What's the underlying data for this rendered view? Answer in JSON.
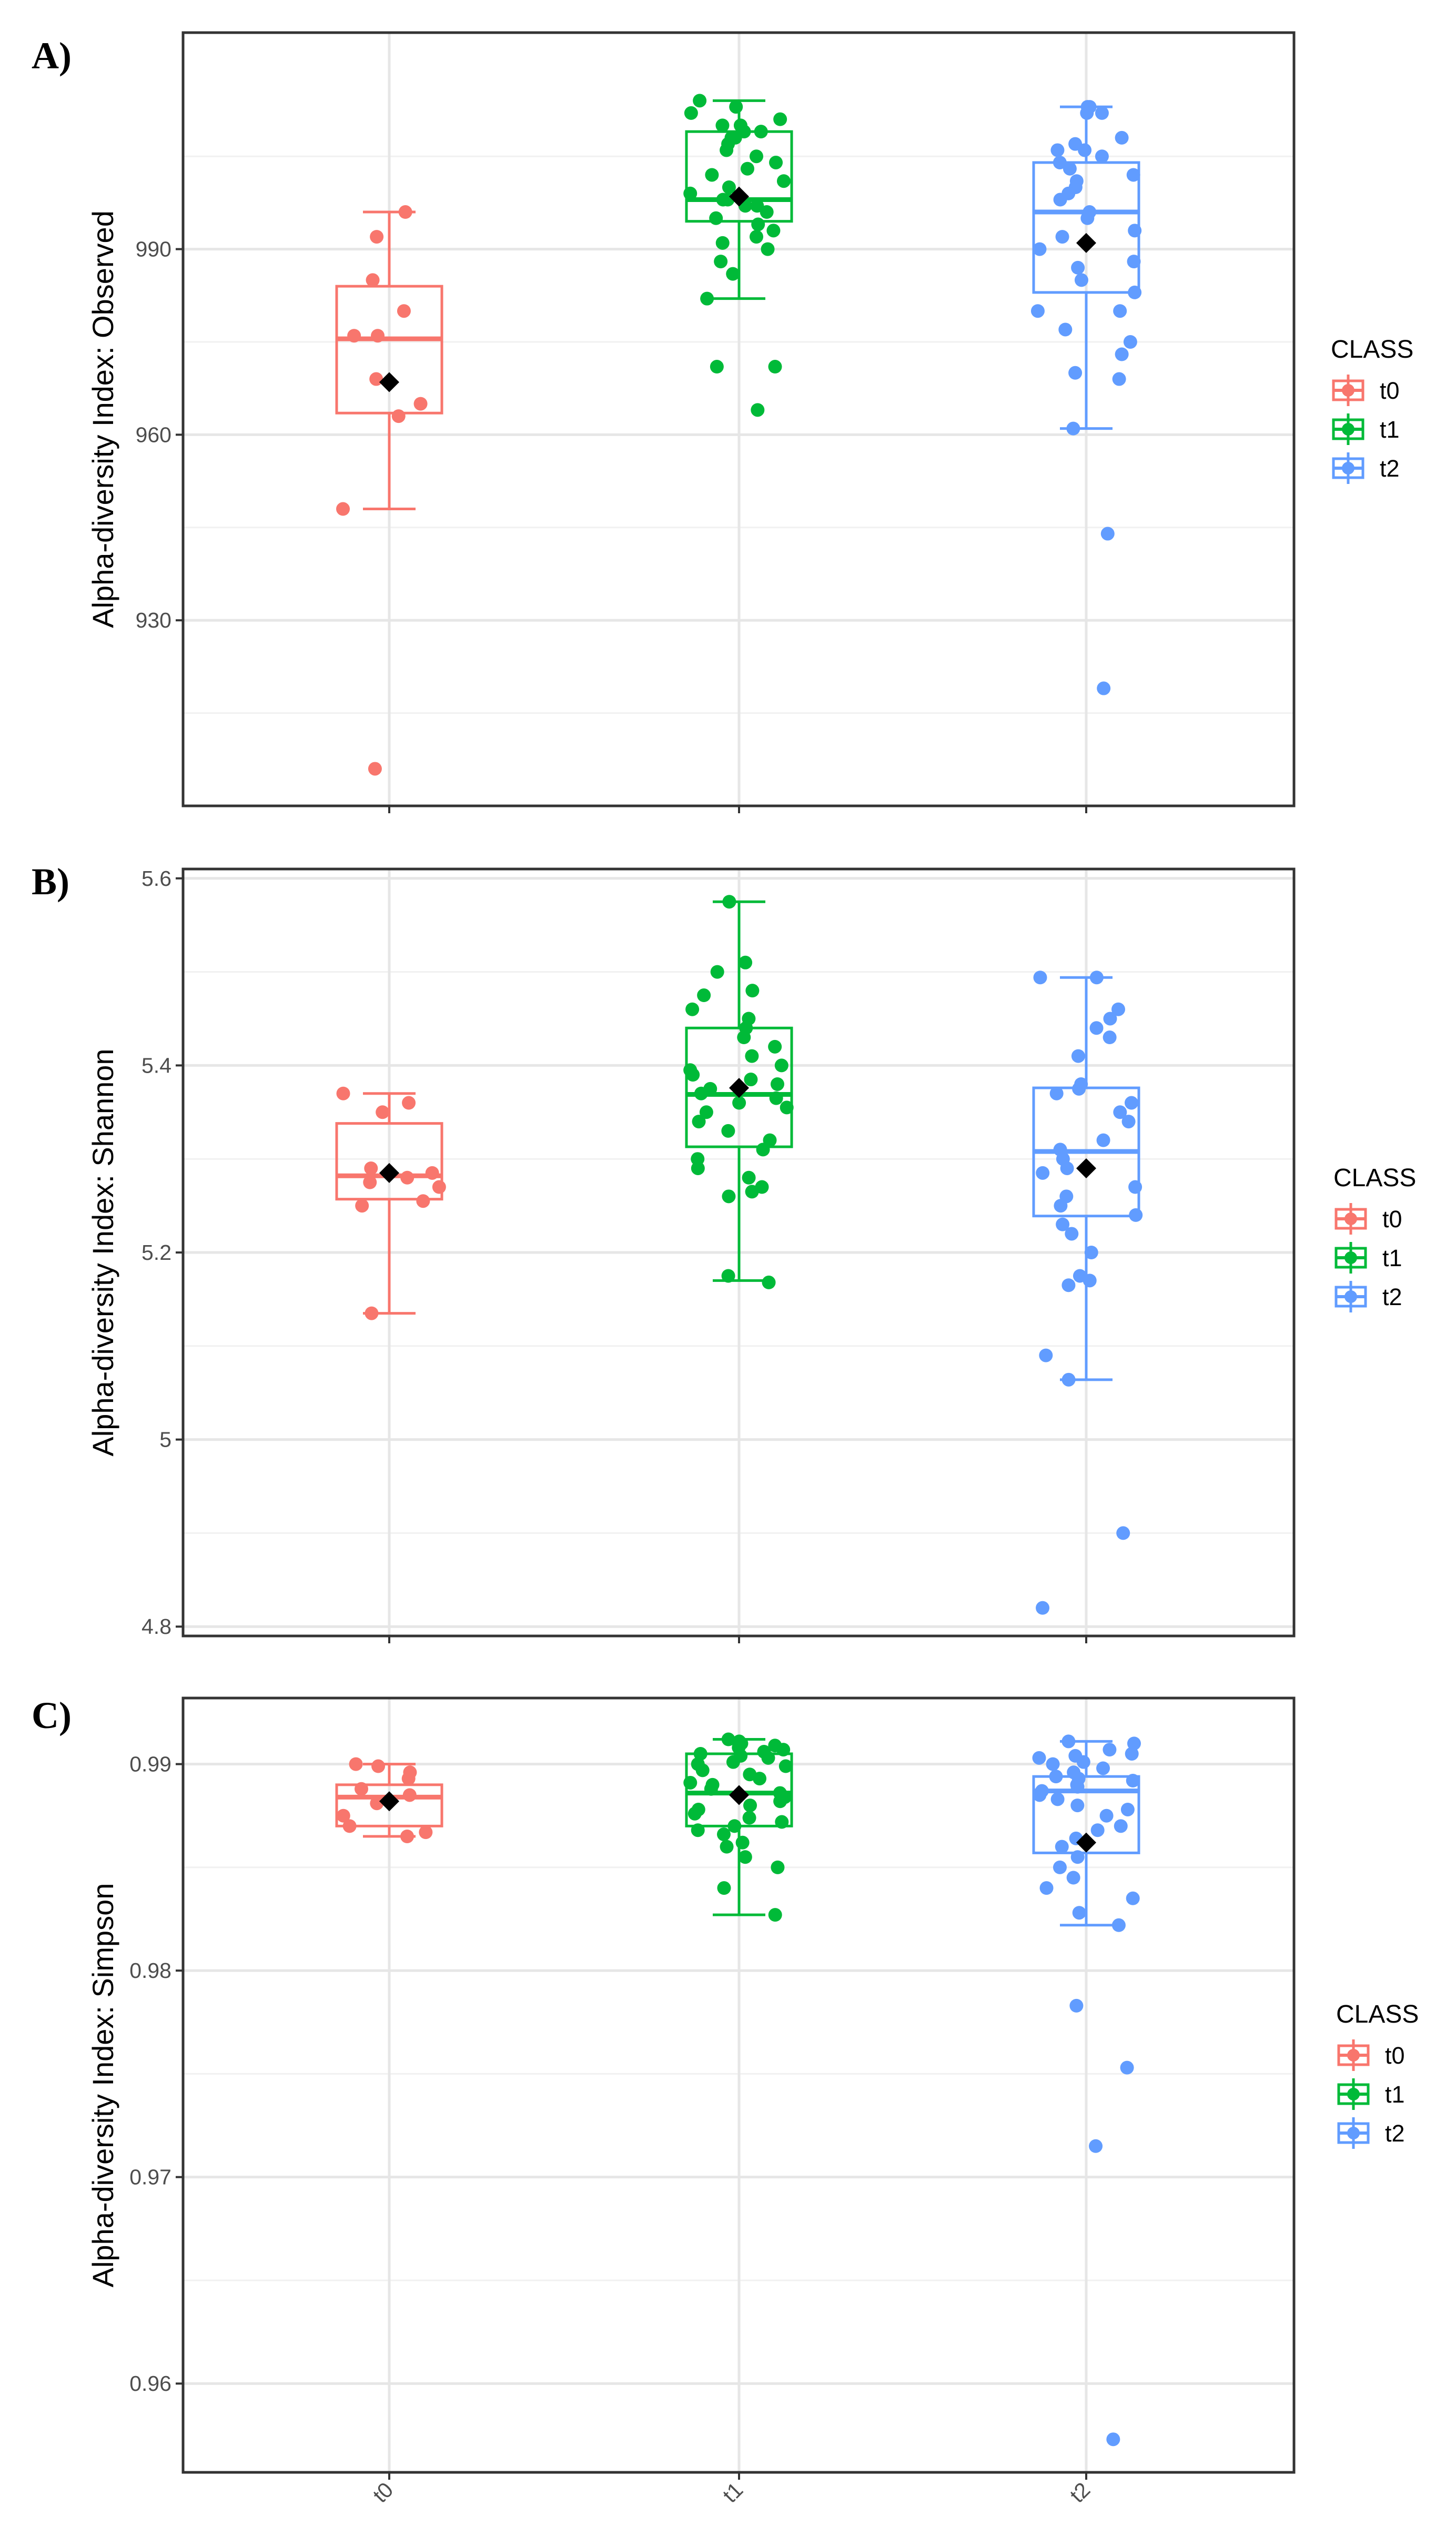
{
  "colors": {
    "t0": "#F8766D",
    "t1": "#00BA38",
    "t2": "#619CFF",
    "mean": "#000000"
  },
  "chart_data": [
    {
      "type": "boxplot",
      "panel_label": "A)",
      "ylabel": "Alpha-diversity Index: Observed",
      "categories": [
        "t0",
        "t1",
        "t2"
      ],
      "ylim": [
        900,
        1025
      ],
      "yticks": [
        930,
        960,
        990
      ],
      "y_minor_ticks": [
        915,
        945,
        975,
        1005
      ],
      "x_tick_labels_shown": false,
      "legend": {
        "title": "CLASS",
        "entries": [
          "t0",
          "t1",
          "t2"
        ],
        "position": "right"
      },
      "boxes": [
        {
          "group": "t0",
          "whisker_low": 948,
          "q1": 963.5,
          "median": 975.5,
          "q3": 984,
          "whisker_high": 996,
          "mean": 968.5,
          "points": [
            996,
            992,
            985,
            980,
            976,
            976,
            969,
            965,
            963,
            948,
            906
          ]
        },
        {
          "group": "t1",
          "whisker_low": 982,
          "q1": 994.5,
          "median": 998,
          "q3": 1009,
          "whisker_high": 1014,
          "mean": 998.5,
          "points": [
            1014,
            1013,
            1012,
            1011,
            1010,
            1010,
            1009,
            1009,
            1008,
            1008,
            1007,
            1006,
            1005,
            1004,
            1003,
            1002,
            1001,
            1000,
            999,
            998,
            998,
            997,
            997,
            996,
            995,
            994,
            993,
            992,
            991,
            990,
            988,
            986,
            982,
            971,
            971,
            964
          ]
        },
        {
          "group": "t2",
          "whisker_low": 961,
          "q1": 983,
          "median": 996,
          "q3": 1004,
          "whisker_high": 1013,
          "mean": 991,
          "points": [
            1013,
            1013,
            1012,
            1012,
            1008,
            1007,
            1006,
            1006,
            1005,
            1004,
            1003,
            1002,
            1001,
            1000,
            999,
            998,
            996,
            995,
            993,
            992,
            990,
            988,
            987,
            985,
            983,
            980,
            980,
            977,
            975,
            973,
            970,
            969,
            961,
            944,
            919
          ]
        }
      ]
    },
    {
      "type": "boxplot",
      "panel_label": "B)",
      "ylabel": "Alpha-diversity Index: Shannon",
      "categories": [
        "t0",
        "t1",
        "t2"
      ],
      "ylim": [
        4.79,
        5.61
      ],
      "yticks": [
        4.8,
        5.0,
        5.2,
        5.4,
        5.6
      ],
      "y_minor_ticks": [
        4.9,
        5.1,
        5.3,
        5.5
      ],
      "x_tick_labels_shown": false,
      "legend": {
        "title": "CLASS",
        "entries": [
          "t0",
          "t1",
          "t2"
        ],
        "position": "right"
      },
      "boxes": [
        {
          "group": "t0",
          "whisker_low": 5.135,
          "q1": 5.257,
          "median": 5.282,
          "q3": 5.338,
          "whisker_high": 5.37,
          "mean": 5.285,
          "points": [
            5.37,
            5.36,
            5.35,
            5.29,
            5.285,
            5.28,
            5.275,
            5.27,
            5.255,
            5.25,
            5.135
          ]
        },
        {
          "group": "t1",
          "whisker_low": 5.17,
          "q1": 5.313,
          "median": 5.369,
          "q3": 5.44,
          "whisker_high": 5.575,
          "mean": 5.376,
          "points": [
            5.575,
            5.51,
            5.5,
            5.48,
            5.475,
            5.46,
            5.45,
            5.44,
            5.43,
            5.42,
            5.41,
            5.4,
            5.395,
            5.39,
            5.385,
            5.38,
            5.375,
            5.37,
            5.365,
            5.36,
            5.355,
            5.35,
            5.34,
            5.33,
            5.32,
            5.31,
            5.3,
            5.29,
            5.28,
            5.27,
            5.265,
            5.26,
            5.175,
            5.168
          ]
        },
        {
          "group": "t2",
          "whisker_low": 5.064,
          "q1": 5.239,
          "median": 5.308,
          "q3": 5.376,
          "whisker_high": 5.494,
          "mean": 5.29,
          "points": [
            5.494,
            5.494,
            5.46,
            5.45,
            5.44,
            5.43,
            5.41,
            5.38,
            5.375,
            5.37,
            5.36,
            5.35,
            5.34,
            5.32,
            5.31,
            5.3,
            5.29,
            5.285,
            5.27,
            5.26,
            5.25,
            5.24,
            5.23,
            5.22,
            5.2,
            5.175,
            5.17,
            5.165,
            5.09,
            5.064,
            4.9,
            4.82
          ]
        }
      ]
    },
    {
      "type": "boxplot",
      "panel_label": "C)",
      "ylabel": "Alpha-diversity Index: Simpson",
      "categories": [
        "t0",
        "t1",
        "t2"
      ],
      "ylim": [
        0.9557,
        0.9932
      ],
      "yticks": [
        0.96,
        0.97,
        0.98,
        0.99
      ],
      "y_minor_ticks": [
        0.965,
        0.975,
        0.985
      ],
      "x_tick_labels_shown": true,
      "legend": {
        "title": "CLASS",
        "entries": [
          "t0",
          "t1",
          "t2"
        ],
        "position": "right"
      },
      "boxes": [
        {
          "group": "t0",
          "whisker_low": 0.9865,
          "q1": 0.987,
          "median": 0.9884,
          "q3": 0.989,
          "whisker_high": 0.99,
          "mean": 0.9882,
          "points": [
            0.99,
            0.9899,
            0.9896,
            0.9893,
            0.9888,
            0.9885,
            0.9881,
            0.9875,
            0.987,
            0.9867,
            0.9865
          ]
        },
        {
          "group": "t1",
          "whisker_low": 0.9827,
          "q1": 0.987,
          "median": 0.9886,
          "q3": 0.9905,
          "whisker_high": 0.9912,
          "mean": 0.9885,
          "points": [
            0.9912,
            0.9911,
            0.991,
            0.9909,
            0.9908,
            0.9907,
            0.9906,
            0.9905,
            0.9904,
            0.9903,
            0.9901,
            0.99,
            0.9899,
            0.9897,
            0.9895,
            0.9893,
            0.9891,
            0.989,
            0.9888,
            0.9886,
            0.9884,
            0.9882,
            0.988,
            0.9878,
            0.9876,
            0.9874,
            0.9872,
            0.987,
            0.9868,
            0.9866,
            0.9862,
            0.986,
            0.9855,
            0.985,
            0.984,
            0.9827
          ]
        },
        {
          "group": "t2",
          "whisker_low": 0.9822,
          "q1": 0.9857,
          "median": 0.9887,
          "q3": 0.9894,
          "whisker_high": 0.9911,
          "mean": 0.9862,
          "points": [
            0.9911,
            0.991,
            0.9907,
            0.9905,
            0.9904,
            0.9903,
            0.9901,
            0.99,
            0.9898,
            0.9896,
            0.9894,
            0.9893,
            0.9892,
            0.989,
            0.9889,
            0.9887,
            0.9885,
            0.9883,
            0.988,
            0.9878,
            0.9875,
            0.987,
            0.9868,
            0.9864,
            0.986,
            0.9855,
            0.985,
            0.9845,
            0.984,
            0.9835,
            0.9828,
            0.9822,
            0.9783,
            0.9753,
            0.9715,
            0.9573
          ]
        }
      ]
    }
  ]
}
